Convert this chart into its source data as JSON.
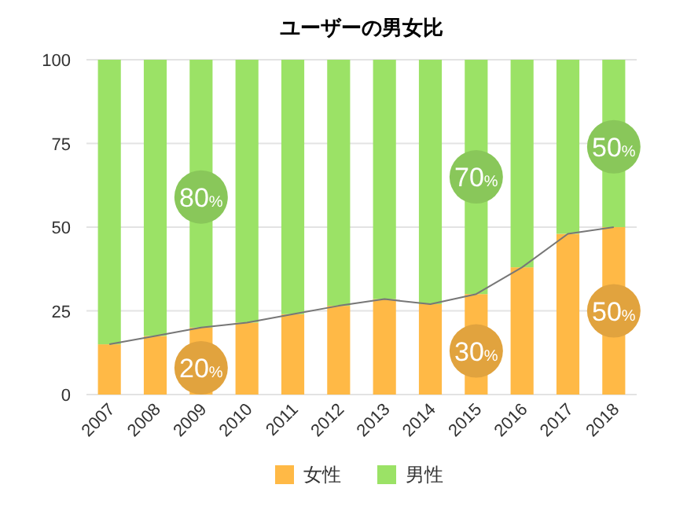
{
  "chart_data": {
    "type": "bar",
    "title": "ユーザーの男女比",
    "stacked": true,
    "categories": [
      "2007",
      "2008",
      "2009",
      "2010",
      "2011",
      "2012",
      "2013",
      "2014",
      "2015",
      "2016",
      "2017",
      "2018"
    ],
    "series": [
      {
        "name": "女性",
        "color": "#ffb946",
        "values": [
          15,
          17.5,
          20,
          21.5,
          24,
          26.5,
          28.5,
          27,
          30,
          38,
          48,
          50
        ]
      },
      {
        "name": "男性",
        "color": "#9be266",
        "values": [
          85,
          82.5,
          80,
          78.5,
          76,
          73.5,
          71.5,
          73,
          70,
          62,
          52,
          50
        ]
      },
      {
        "type": "line",
        "color": "#777777",
        "values": [
          15,
          17.5,
          20,
          21.5,
          24,
          26.5,
          28.5,
          27,
          30,
          38,
          48,
          50
        ]
      }
    ],
    "annotations": [
      {
        "text": "20%",
        "x": "2009",
        "y": 8
      },
      {
        "text": "80%",
        "x": "2009",
        "y": 59
      },
      {
        "text": "30%",
        "x": "2015",
        "y": 13
      },
      {
        "text": "70%",
        "x": "2015",
        "y": 65
      },
      {
        "text": "50%",
        "x": "2018",
        "y": 25
      },
      {
        "text": "50%",
        "x": "2018",
        "y": 74
      }
    ],
    "ylim": [
      0,
      100
    ],
    "yticks": [
      0,
      25,
      50,
      75,
      100
    ],
    "grid": "y",
    "legend": "bottom"
  }
}
